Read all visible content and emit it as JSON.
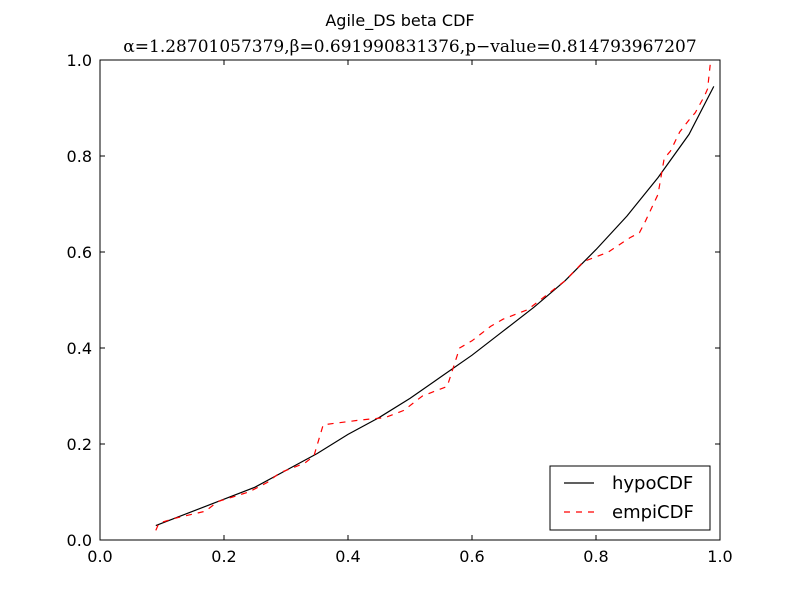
{
  "chart_data": {
    "type": "line",
    "title": "Agile_DS beta CDF",
    "subtitle": "α=1.28701057379,β=0.691990831376,p−value=0.814793967207",
    "xlabel": "",
    "ylabel": "",
    "xlim": [
      0.0,
      1.0
    ],
    "ylim": [
      0.0,
      1.0
    ],
    "x_ticks": [
      "0.0",
      "0.2",
      "0.4",
      "0.6",
      "0.8",
      "1.0"
    ],
    "y_ticks": [
      "0.0",
      "0.2",
      "0.4",
      "0.6",
      "0.8",
      "1.0"
    ],
    "grid": false,
    "legend_position": "lower-right",
    "series": [
      {
        "name": "hypoCDF",
        "color": "#000000",
        "style": "solid",
        "x": [
          0.09,
          0.15,
          0.2,
          0.25,
          0.3,
          0.35,
          0.4,
          0.45,
          0.5,
          0.55,
          0.6,
          0.65,
          0.7,
          0.75,
          0.8,
          0.85,
          0.9,
          0.95,
          0.99
        ],
        "y": [
          0.03,
          0.06,
          0.085,
          0.11,
          0.145,
          0.18,
          0.22,
          0.255,
          0.295,
          0.34,
          0.385,
          0.435,
          0.485,
          0.54,
          0.605,
          0.675,
          0.755,
          0.845,
          0.945
        ]
      },
      {
        "name": "empiCDF",
        "color": "#ff0000",
        "style": "dashed",
        "x": [
          0.09,
          0.095,
          0.12,
          0.17,
          0.19,
          0.24,
          0.27,
          0.29,
          0.33,
          0.345,
          0.36,
          0.42,
          0.46,
          0.49,
          0.52,
          0.56,
          0.58,
          0.6,
          0.63,
          0.65,
          0.69,
          0.72,
          0.75,
          0.78,
          0.82,
          0.855,
          0.87,
          0.88,
          0.9,
          0.91,
          0.92,
          0.935,
          0.95,
          0.96,
          0.975,
          0.98,
          0.985
        ],
        "y": [
          0.02,
          0.035,
          0.045,
          0.06,
          0.08,
          0.1,
          0.12,
          0.14,
          0.16,
          0.175,
          0.24,
          0.25,
          0.255,
          0.27,
          0.3,
          0.32,
          0.4,
          0.415,
          0.445,
          0.46,
          0.48,
          0.51,
          0.54,
          0.58,
          0.6,
          0.63,
          0.64,
          0.665,
          0.72,
          0.795,
          0.81,
          0.85,
          0.875,
          0.89,
          0.925,
          0.94,
          1.0
        ]
      }
    ]
  }
}
